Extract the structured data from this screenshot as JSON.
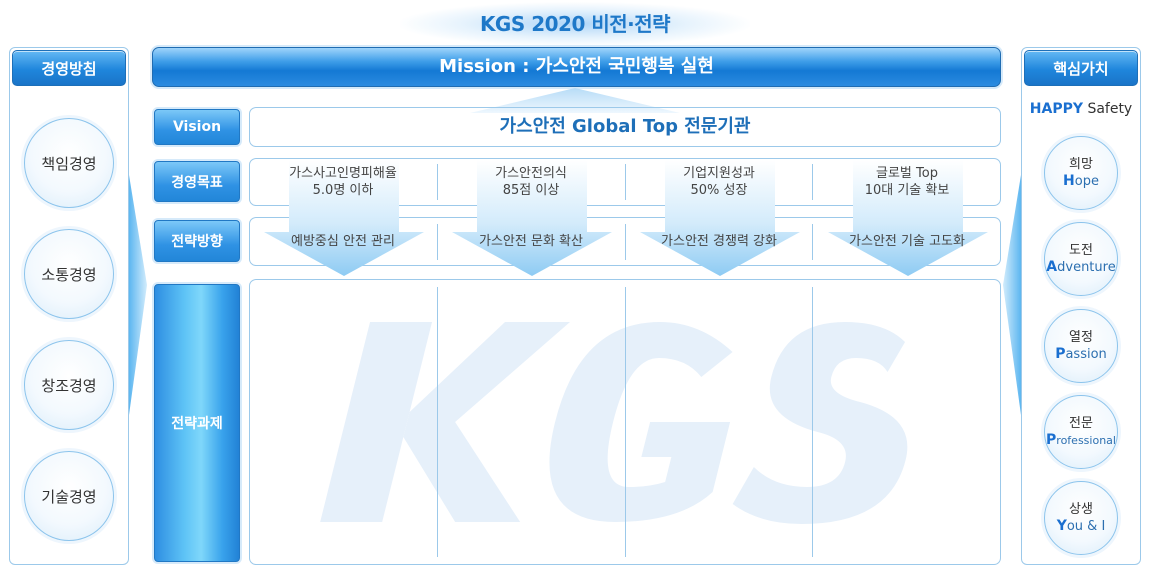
{
  "title": "KGS 2020 비전·전략",
  "watermark": "KGS",
  "left_panel": {
    "header": "경영방침",
    "items": [
      "책임경영",
      "소통경영",
      "창조경영",
      "기술경영"
    ]
  },
  "right_panel": {
    "header": "핵심가치",
    "subtitle_happy": "HAPPY",
    "subtitle_safety": "Safety",
    "values": [
      {
        "ko": "희망",
        "initial": "H",
        "rest": "ope"
      },
      {
        "ko": "도전",
        "initial": "A",
        "rest": "dventure"
      },
      {
        "ko": "열정",
        "initial": "P",
        "rest": "assion"
      },
      {
        "ko": "전문",
        "initial": "P",
        "rest": "rofessional"
      },
      {
        "ko": "상생",
        "initial": "Y",
        "rest": "ou & I"
      }
    ]
  },
  "mission": "Mission : 가스안전 국민행복 실현",
  "vision": {
    "label": "Vision",
    "text": "가스안전 Global Top 전문기관"
  },
  "goals": {
    "label": "경영목표",
    "items": [
      {
        "line1": "가스사고인명피해율",
        "line2": "5.0명 이하"
      },
      {
        "line1": "가스안전의식",
        "line2": "85점 이상"
      },
      {
        "line1": "기업지원성과",
        "line2": "50% 성장"
      },
      {
        "line1": "글로벌 Top",
        "line2": "10대 기술 확보"
      }
    ]
  },
  "directions": {
    "label": "전략방향",
    "items": [
      "예방중심 안전 관리",
      "가스안전 문화 확산",
      "가스안전 경쟁력 강화",
      "가스안전 기술 고도화"
    ]
  },
  "tasks": {
    "label": "전략과제"
  },
  "colors": {
    "primary": "#1e78c8",
    "header_blue": "#1f86dc",
    "border_light": "#9cc9ea",
    "arrow_fill": "#aad6f6",
    "watermark": "#e6f0fa"
  }
}
